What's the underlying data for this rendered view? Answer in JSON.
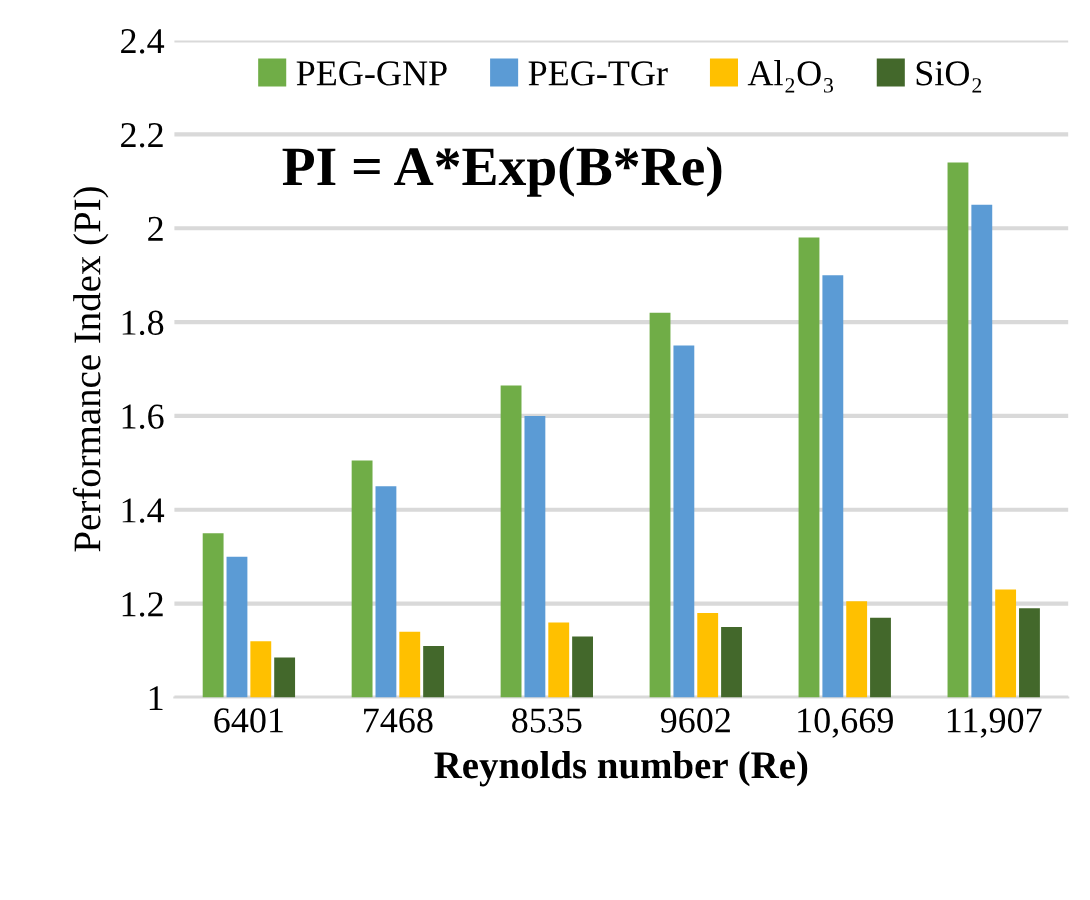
{
  "chart_data": {
    "type": "bar",
    "xlabel": "Reynolds number (Re)",
    "ylabel": "Performance Index (PI)",
    "annotations": [
      "PI = A*Exp(B*Re)"
    ],
    "categories": [
      "6401",
      "7468",
      "8535",
      "9602",
      "10,669",
      "11,907"
    ],
    "series": [
      {
        "name": "PEG-GNP",
        "color": "#70ad47",
        "values": [
          1.35,
          1.505,
          1.665,
          1.82,
          1.98,
          2.14
        ]
      },
      {
        "name": "PEG-TGr",
        "color": "#5b9bd5",
        "values": [
          1.3,
          1.45,
          1.6,
          1.75,
          1.9,
          2.05
        ]
      },
      {
        "name": "Al₂O₃",
        "color": "#ffc000",
        "values": [
          1.12,
          1.14,
          1.16,
          1.18,
          1.205,
          1.23
        ]
      },
      {
        "name": "SiO₂",
        "color": "#43682b",
        "values": [
          1.085,
          1.11,
          1.13,
          1.15,
          1.17,
          1.19
        ]
      }
    ],
    "ylim": [
      1,
      2.4
    ],
    "yticks": [
      1,
      1.2,
      1.4,
      1.6,
      1.8,
      2,
      2.2,
      2.4
    ],
    "grid": "y",
    "legend": "top"
  }
}
